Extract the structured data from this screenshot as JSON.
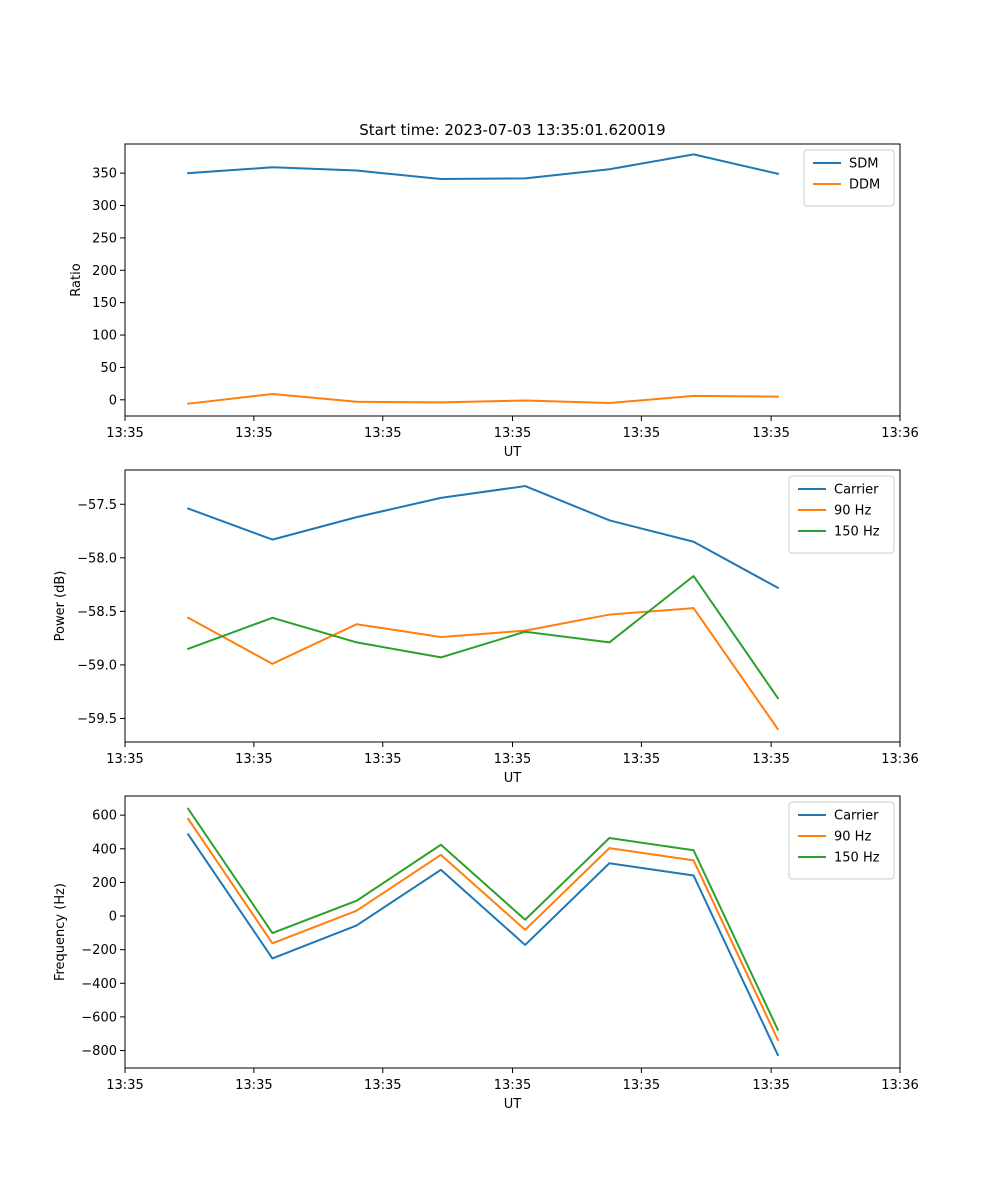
{
  "chart_data": [
    {
      "type": "line",
      "title": "Start time: 2023-07-03 13:35:01.620019",
      "xlabel": "UT",
      "ylabel": "Ratio",
      "x": [
        0,
        1,
        2,
        3,
        4,
        5,
        6,
        7
      ],
      "xlim": [
        -0.75,
        8.45
      ],
      "ylim": [
        -25,
        395
      ],
      "xticks": [
        -0.75,
        0.78,
        2.31,
        3.85,
        5.38,
        6.92,
        8.45
      ],
      "xtick_labels": [
        "13:35",
        "13:35",
        "13:35",
        "13:35",
        "13:35",
        "13:35",
        "13:36"
      ],
      "yticks": [
        0,
        50,
        100,
        150,
        200,
        250,
        300,
        350
      ],
      "ytick_labels": [
        "0",
        "50",
        "100",
        "150",
        "200",
        "250",
        "300",
        "350"
      ],
      "legend_position": "top-right",
      "series": [
        {
          "name": "SDM",
          "color": "#1f77b4",
          "values": [
            350,
            359,
            354,
            341,
            342,
            356,
            379,
            349
          ]
        },
        {
          "name": "DDM",
          "color": "#ff7f0e",
          "values": [
            -6,
            9,
            -3,
            -4,
            -1,
            -5,
            6,
            5
          ]
        }
      ]
    },
    {
      "type": "line",
      "title": "",
      "xlabel": "UT",
      "ylabel": "Power (dB)",
      "x": [
        0,
        1,
        2,
        3,
        4,
        5,
        6,
        7
      ],
      "xlim": [
        -0.75,
        8.45
      ],
      "ylim": [
        -59.72,
        -57.18
      ],
      "xticks": [
        -0.75,
        0.78,
        2.31,
        3.85,
        5.38,
        6.92,
        8.45
      ],
      "xtick_labels": [
        "13:35",
        "13:35",
        "13:35",
        "13:35",
        "13:35",
        "13:35",
        "13:36"
      ],
      "yticks": [
        -59.5,
        -59.0,
        -58.5,
        -58.0,
        -57.5
      ],
      "ytick_labels": [
        "−59.5",
        "−59.0",
        "−58.5",
        "−58.0",
        "−57.5"
      ],
      "legend_position": "top-right",
      "series": [
        {
          "name": "Carrier",
          "color": "#1f77b4",
          "values": [
            -57.54,
            -57.83,
            -57.62,
            -57.44,
            -57.33,
            -57.65,
            -57.85,
            -58.28
          ]
        },
        {
          "name": "90 Hz",
          "color": "#ff7f0e",
          "values": [
            -58.56,
            -58.99,
            -58.62,
            -58.74,
            -58.68,
            -58.53,
            -58.47,
            -59.6
          ]
        },
        {
          "name": "150 Hz",
          "color": "#2ca02c",
          "values": [
            -58.85,
            -58.56,
            -58.79,
            -58.93,
            -58.69,
            -58.79,
            -58.17,
            -59.31
          ]
        }
      ]
    },
    {
      "type": "line",
      "title": "",
      "xlabel": "UT",
      "ylabel": "Frequency (Hz)",
      "x": [
        0,
        1,
        2,
        3,
        4,
        5,
        6,
        7
      ],
      "xlim": [
        -0.75,
        8.45
      ],
      "ylim": [
        -904,
        714
      ],
      "xticks": [
        -0.75,
        0.78,
        2.31,
        3.85,
        5.38,
        6.92,
        8.45
      ],
      "xtick_labels": [
        "13:35",
        "13:35",
        "13:35",
        "13:35",
        "13:35",
        "13:35",
        "13:36"
      ],
      "yticks": [
        -800,
        -600,
        -400,
        -200,
        0,
        200,
        400,
        600
      ],
      "ytick_labels": [
        "−800",
        "−600",
        "−400",
        "−200",
        "0",
        "200",
        "400",
        "600"
      ],
      "legend_position": "top-right",
      "series": [
        {
          "name": "Carrier",
          "color": "#1f77b4",
          "values": [
            486,
            -252,
            -56,
            275,
            -172,
            314,
            241,
            -827
          ]
        },
        {
          "name": "90 Hz",
          "color": "#ff7f0e",
          "values": [
            578,
            -162,
            32,
            364,
            -82,
            404,
            331,
            -737
          ]
        },
        {
          "name": "150 Hz",
          "color": "#2ca02c",
          "values": [
            638,
            -101,
            91,
            424,
            -22,
            464,
            391,
            -677
          ]
        }
      ]
    }
  ]
}
